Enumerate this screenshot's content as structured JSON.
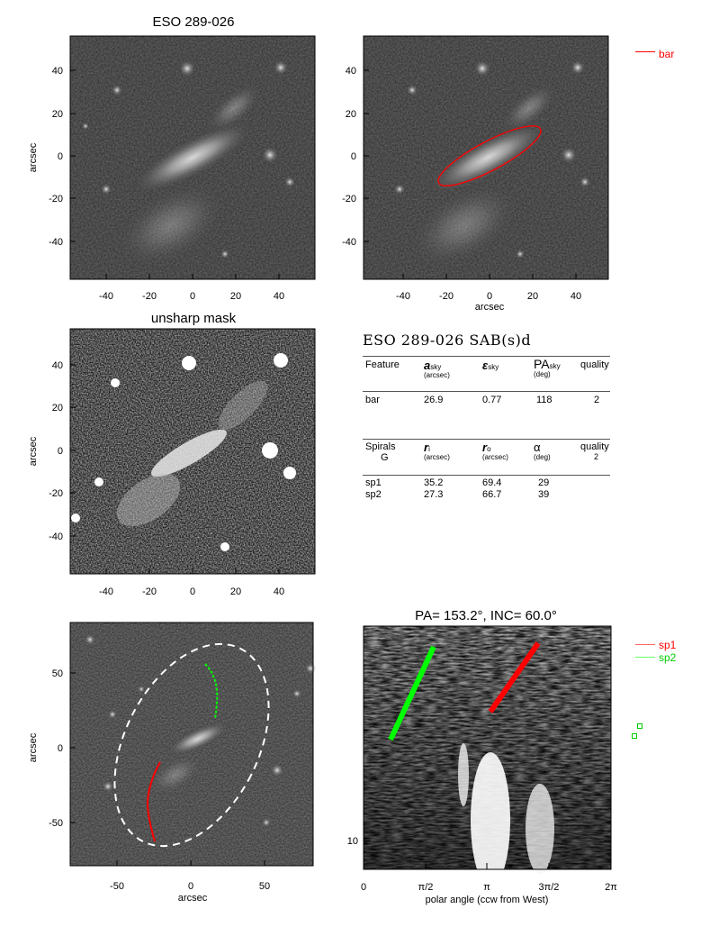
{
  "galaxy_title": "ESO 289-026",
  "unsharp_title": "unsharp mask",
  "pa_inc_title": "PA= 153.2°, INC=  60.0°",
  "axis_label_arcsec": "arcsec",
  "polar_xlabel": "polar angle (ccw from West)",
  "legend_bar": "bar",
  "legend_sp1": "sp1",
  "legend_sp2": "sp2",
  "colors": {
    "bar": "#ff0000",
    "sp1": "#ff0000",
    "sp2": "#00ff00",
    "fit_ellipse": "#ffffff"
  },
  "table": {
    "heading": "ESO 289-026  SAB(s)d",
    "bar_header": {
      "feature": "Feature",
      "a_sky": "a",
      "a_sky_sub": "sky",
      "a_unit": "(arcsec)",
      "eps": "ε",
      "eps_sub": "sky",
      "pa": "PA",
      "pa_sub": "sky",
      "pa_unit": "(deg)",
      "quality": "quality"
    },
    "bar_row": {
      "feature": "bar",
      "a": "26.9",
      "eps": "0.77",
      "pa": "118",
      "quality": "2"
    },
    "spiral_header": {
      "spirals": "Spirals",
      "class": "G",
      "ri": "r",
      "ri_sub": "i",
      "ri_unit": "(arcsec)",
      "ro": "r",
      "ro_sub": "o",
      "ro_unit": "(arcsec)",
      "alpha": "α",
      "alpha_unit": "(deg)",
      "quality": "quality",
      "quality_val": "2"
    },
    "spiral_rows": [
      {
        "name": "sp1",
        "ri": "35.2",
        "ro": "69.4",
        "alpha": "29"
      },
      {
        "name": "sp2",
        "ri": "27.3",
        "ro": "66.7",
        "alpha": "39"
      }
    ]
  },
  "axes": {
    "panel1_x": [
      "-40",
      "-20",
      "0",
      "20",
      "40"
    ],
    "panel1_y": [
      "40",
      "20",
      "0",
      "-20",
      "-40"
    ],
    "panel4_x": [
      "-50",
      "0",
      "50"
    ],
    "panel4_y": [
      "50",
      "0",
      "-50"
    ],
    "polar_x": [
      "0",
      "π/2",
      "π",
      "3π/2",
      "2π"
    ],
    "polar_y": [
      "10"
    ]
  }
}
